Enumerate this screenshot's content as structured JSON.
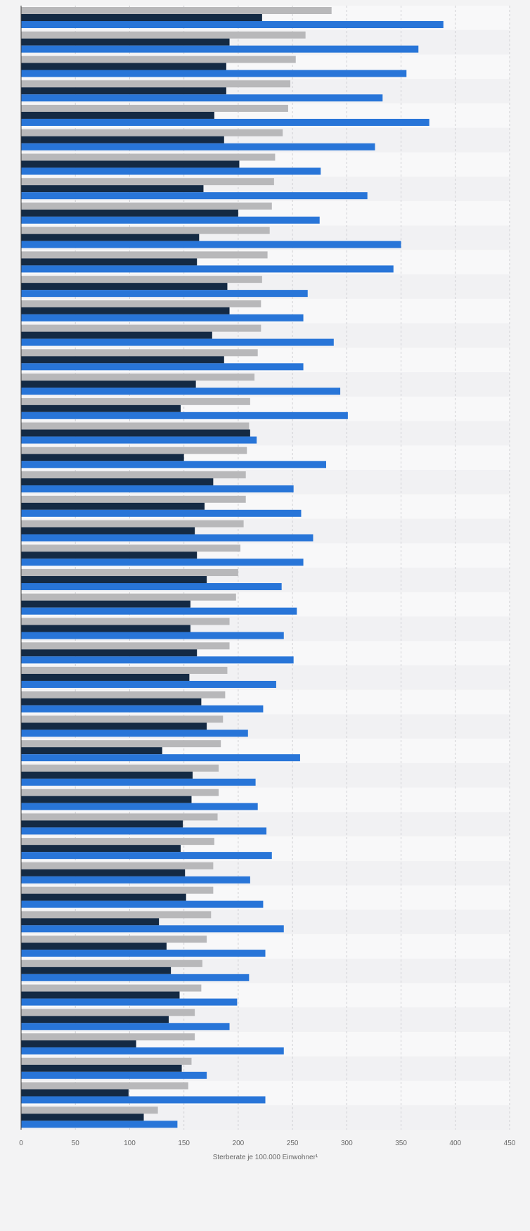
{
  "chart_data": {
    "type": "bar",
    "orientation": "horizontal",
    "xlabel": "Sterberate je 100.000 Einwohner¹",
    "ylabel": "",
    "xlim": [
      0,
      450
    ],
    "x_ticks": [
      0,
      50,
      100,
      150,
      200,
      250,
      300,
      350,
      400,
      450
    ],
    "grid": true,
    "legend": "none",
    "colors": {
      "series_1": "#b8b8ba",
      "series_2": "#142a44",
      "series_3": "#2875d8",
      "band_light": "#f8f8f9",
      "band_dark": "#f1f1f3",
      "grid": "#d0d0d4"
    },
    "categories": [
      "",
      "",
      "",
      "",
      "",
      "",
      "",
      "",
      "",
      "",
      "",
      "",
      "",
      "",
      "",
      "",
      "",
      "",
      "",
      "",
      "",
      "",
      "",
      "",
      "",
      "",
      "",
      "",
      "",
      "",
      "",
      "",
      "",
      "",
      "",
      "",
      "",
      "",
      "",
      "",
      "",
      "",
      "",
      "",
      "",
      ""
    ],
    "series": [
      {
        "values": [
          286,
          262,
          253,
          248,
          246,
          241,
          234,
          233,
          231,
          229,
          227,
          222,
          221,
          221,
          218,
          215,
          211,
          210,
          208,
          207,
          207,
          205,
          202,
          200,
          198,
          192,
          192,
          190,
          188,
          186,
          184,
          182,
          182,
          181,
          178,
          177,
          177,
          175,
          171,
          167,
          166,
          160,
          160,
          157,
          154,
          126
        ]
      },
      {
        "values": [
          222,
          192,
          189,
          189,
          178,
          187,
          201,
          168,
          200,
          164,
          162,
          190,
          192,
          176,
          187,
          161,
          147,
          211,
          150,
          177,
          169,
          160,
          162,
          171,
          156,
          156,
          162,
          155,
          166,
          171,
          130,
          158,
          157,
          149,
          147,
          151,
          152,
          127,
          134,
          138,
          146,
          136,
          106,
          148,
          99,
          113
        ]
      },
      {
        "values": [
          389,
          366,
          355,
          333,
          376,
          326,
          276,
          319,
          275,
          350,
          343,
          264,
          260,
          288,
          260,
          294,
          301,
          217,
          281,
          251,
          258,
          269,
          260,
          240,
          254,
          242,
          251,
          235,
          223,
          209,
          257,
          216,
          218,
          226,
          231,
          211,
          223,
          242,
          225,
          210,
          199,
          192,
          242,
          171,
          225,
          144
        ]
      }
    ]
  }
}
